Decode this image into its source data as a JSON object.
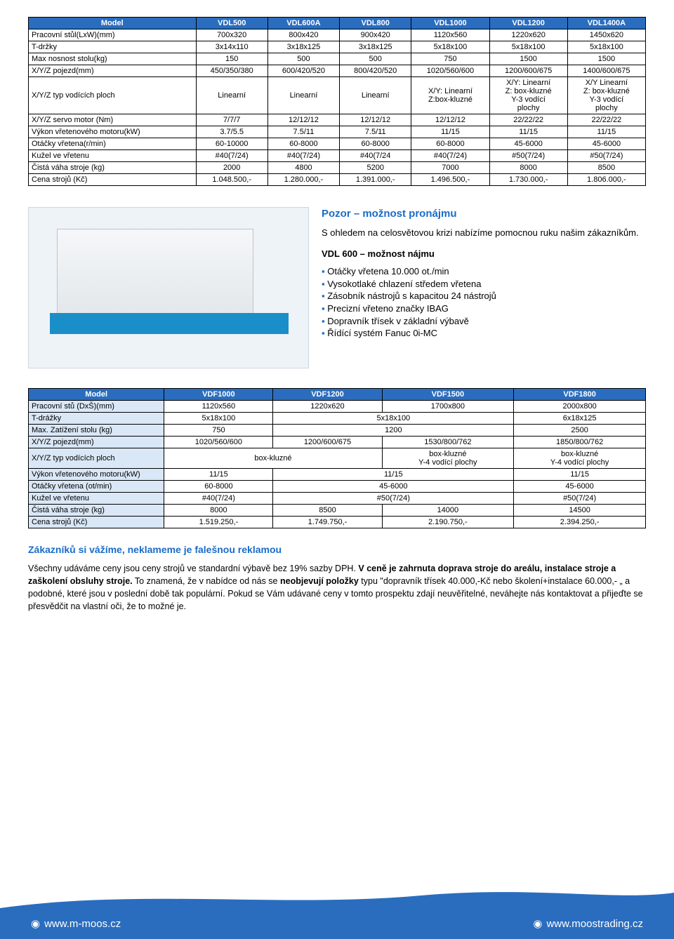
{
  "table1": {
    "header": [
      "Model",
      "VDL500",
      "VDL600A",
      "VDL800",
      "VDL1000",
      "VDL1200",
      "VDL1400A"
    ],
    "rows": [
      {
        "label": "Pracovní stůl(LxW)(mm)",
        "cells": [
          "700x320",
          "800x420",
          "900x420",
          "1120x560",
          "1220x620",
          "1450x620"
        ]
      },
      {
        "label": "T-držky",
        "cells": [
          "3x14x110",
          "3x18x125",
          "3x18x125",
          "5x18x100",
          "5x18x100",
          "5x18x100"
        ]
      },
      {
        "label": "Max nosnost stolu(kg)",
        "cells": [
          "150",
          "500",
          "500",
          "750",
          "1500",
          "1500"
        ]
      },
      {
        "label": "X/Y/Z pojezd(mm)",
        "cells": [
          "450/350/380",
          "600/420/520",
          "800/420/520",
          "1020/560/600",
          "1200/600/675",
          "1400/600/675"
        ]
      },
      {
        "label": "X/Y/Z typ vodících ploch",
        "cells": [
          "Linearní",
          "Linearní",
          "Linearní",
          "X/Y: Linearní\nZ:box-kluzné",
          "X/Y: Linearní\nZ: box-kluzné\nY-3 vodící\nplochy",
          "X/Y Linearní\nZ: box-kluzné\nY-3 vodící\nplochy"
        ]
      },
      {
        "label": "X/Y/Z servo motor (Nm)",
        "cells": [
          "7/7/7",
          "12/12/12",
          "12/12/12",
          "12/12/12",
          "22/22/22",
          "22/22/22"
        ]
      },
      {
        "label": "Výkon vřetenového motoru(kW)",
        "cells": [
          "3.7/5.5",
          "7.5/11",
          "7.5/11",
          "11/15",
          "11/15",
          "11/15"
        ]
      },
      {
        "label": "Otáčky vřetena(r/min)",
        "cells": [
          "60-10000",
          "60-8000",
          "60-8000",
          "60-8000",
          "45-6000",
          "45-6000"
        ]
      },
      {
        "label": "Kužel ve vřetenu",
        "cells": [
          "#40(7/24)",
          "#40(7/24)",
          "#40(7/24",
          "#40(7/24)",
          "#50(7/24)",
          "#50(7/24)"
        ]
      },
      {
        "label": "Čistá váha stroje (kg)",
        "cells": [
          "2000",
          "4800",
          "5200",
          "7000",
          "8000",
          "8500"
        ]
      },
      {
        "label": "Cena strojů (Kč)",
        "cells": [
          "1.048.500,-",
          "1.280.000,-",
          "1.391.000,-",
          "1.496.500,-",
          "1.730.000,-",
          "1.806.000,-"
        ]
      }
    ]
  },
  "promo": {
    "title": "Pozor – možnost pronájmu",
    "lead": "S ohledem na celosvětovou krizi nabízíme pomocnou ruku našim zákazníkům.",
    "najmu": "VDL 600 – možnost nájmu",
    "bullets": [
      "Otáčky vřetena 10.000 ot./min",
      "Vysokotlaké chlazení středem vřetena",
      "Zásobník nástrojů s kapacitou 24 nástrojů",
      "Precizní vřeteno značky IBAG",
      "Dopravník třísek v základní výbavě",
      "Řídící systém Fanuc 0i-MC"
    ]
  },
  "table2": {
    "header": [
      "Model",
      "VDF1000",
      "VDF1200",
      "VDF1500",
      "VDF1800"
    ],
    "r1": {
      "label": "Pracovní stů (DxŠ)(mm)",
      "c": [
        "1120x560",
        "1220x620",
        "1700x800",
        "2000x800"
      ]
    },
    "r2": {
      "label": "T-drážky",
      "c": [
        "5x18x100",
        "5x18x100",
        "6x18x125"
      ]
    },
    "r3": {
      "label": "Max. Zatížení stolu (kg)",
      "c": [
        "750",
        "1200",
        "2500"
      ]
    },
    "r4": {
      "label": "X/Y/Z pojezd(mm)",
      "c": [
        "1020/560/600",
        "1200/600/675",
        "1530/800/762",
        "1850/800/762"
      ]
    },
    "r5": {
      "label": "X/Y/Z typ vodících ploch",
      "c": [
        "box-kluzné",
        "box-kluzné\nY-4 vodící plochy",
        "box-kluzné\nY-4 vodící plochy"
      ]
    },
    "r6": {
      "label": "Výkon vřetenového motoru(kW)",
      "c": [
        "11/15",
        "11/15",
        "11/15"
      ]
    },
    "r7": {
      "label": "Otáčky vřetena (ot/min)",
      "c": [
        "60-8000",
        "45-6000",
        "45-6000"
      ]
    },
    "r8": {
      "label": "Kužel ve vřetenu",
      "c": [
        "#40(7/24)",
        "#50(7/24)",
        "#50(7/24)"
      ]
    },
    "r9": {
      "label": "Čistá váha stroje (kg)",
      "c": [
        "8000",
        "8500",
        "14000",
        "14500"
      ]
    },
    "r10": {
      "label": "Cena strojů (Kč)",
      "c": [
        "1.519.250,-",
        "1.749.750,-",
        "2.190.750,-",
        "2.394.250,-"
      ]
    }
  },
  "notice": {
    "title": "Zákazníků si vážíme, neklameme je falešnou reklamou",
    "body_before": "Všechny udáváme ceny jsou ceny strojů ve standardní výbavě bez 19% sazby DPH. ",
    "body_bold1": "V ceně je zahrnuta doprava stroje do areálu, instalace stroje a zaškolení obsluhy stroje.",
    "body_mid": " To znamená, že v nabídce od nás se ",
    "body_bold2": "neobjevují položky",
    "body_after": " typu \"dopravník třísek 40.000,-Kč nebo školení+instalace 60.000,- „ a podobné, které jsou v poslední době tak populární. Pokud se Vám udávané ceny v tomto prospektu zdají neuvěřitelné, neváhejte nás kontaktovat a přijeďte se přesvědčit na vlastní oči, že to možné je."
  },
  "footer": {
    "left": "www.m-moos.cz",
    "right": "www.moostrading.cz"
  },
  "colors": {
    "hdr_bg": "#2a6dbf",
    "hdr_fg": "#ffffff",
    "light_bg": "#d9e7f6",
    "accent": "#1a6cc8"
  }
}
